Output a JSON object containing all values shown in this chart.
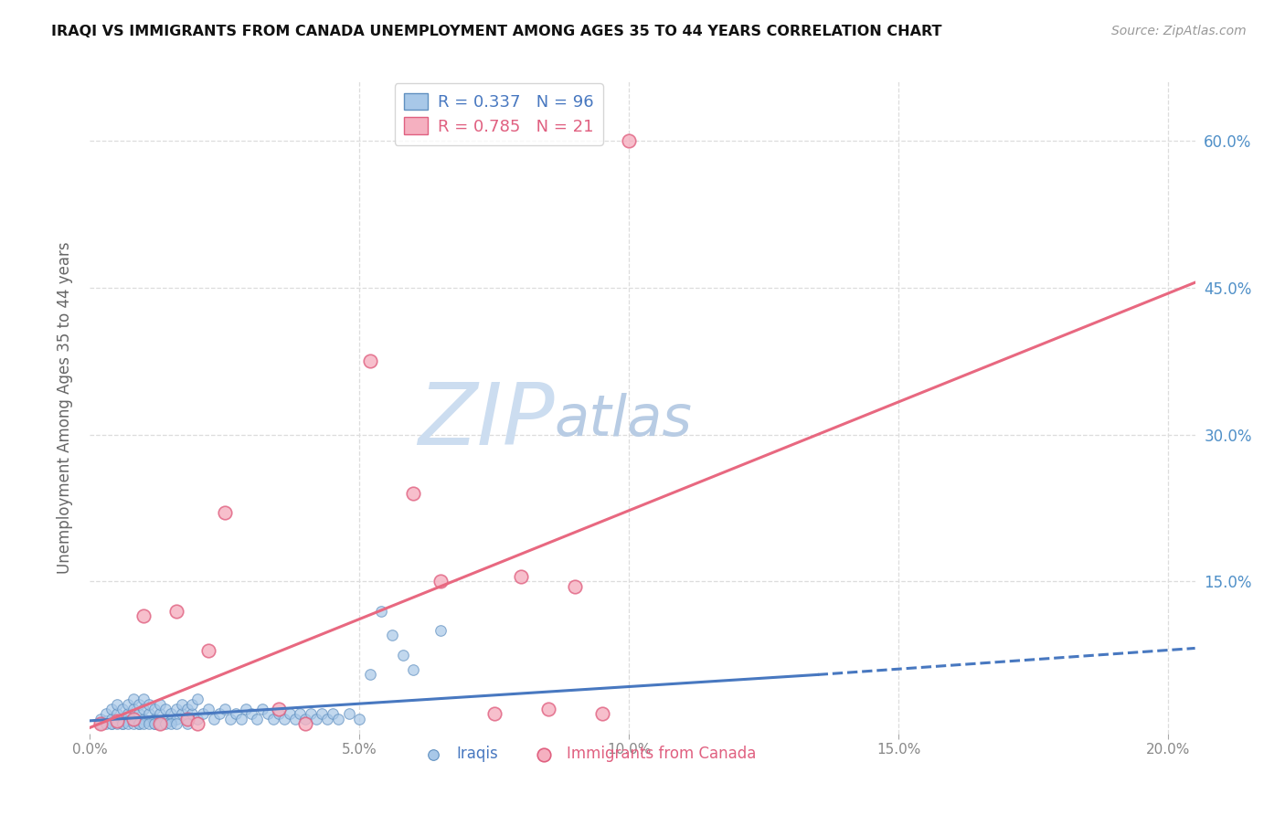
{
  "title": "IRAQI VS IMMIGRANTS FROM CANADA UNEMPLOYMENT AMONG AGES 35 TO 44 YEARS CORRELATION CHART",
  "source": "Source: ZipAtlas.com",
  "ylabel": "Unemployment Among Ages 35 to 44 years",
  "xlim": [
    0.0,
    0.205
  ],
  "ylim": [
    -0.005,
    0.66
  ],
  "iraqis_color": "#a8c8e8",
  "iraqis_edge_color": "#6090c0",
  "canada_color": "#f5b0c0",
  "canada_edge_color": "#e06080",
  "iraqis_line_color": "#4878c0",
  "canada_line_color": "#e86880",
  "iraqis_R": "0.337",
  "iraqis_N": "96",
  "canada_R": "0.785",
  "canada_N": "21",
  "ytick_color": "#5090c8",
  "xtick_color": "#888888",
  "ylabel_color": "#666666",
  "grid_color": "#dddddd",
  "iraqis_x": [
    0.002,
    0.003,
    0.003,
    0.004,
    0.004,
    0.004,
    0.005,
    0.005,
    0.005,
    0.006,
    0.006,
    0.006,
    0.007,
    0.007,
    0.007,
    0.008,
    0.008,
    0.008,
    0.009,
    0.009,
    0.009,
    0.01,
    0.01,
    0.01,
    0.011,
    0.011,
    0.011,
    0.012,
    0.012,
    0.012,
    0.013,
    0.013,
    0.014,
    0.014,
    0.015,
    0.015,
    0.016,
    0.016,
    0.017,
    0.017,
    0.018,
    0.018,
    0.019,
    0.019,
    0.02,
    0.02,
    0.021,
    0.022,
    0.023,
    0.024,
    0.025,
    0.026,
    0.027,
    0.028,
    0.029,
    0.03,
    0.031,
    0.032,
    0.033,
    0.034,
    0.035,
    0.036,
    0.037,
    0.038,
    0.039,
    0.04,
    0.041,
    0.042,
    0.043,
    0.044,
    0.045,
    0.046,
    0.048,
    0.05,
    0.052,
    0.054,
    0.056,
    0.058,
    0.06,
    0.065,
    0.002,
    0.003,
    0.004,
    0.005,
    0.006,
    0.007,
    0.008,
    0.009,
    0.01,
    0.011,
    0.012,
    0.013,
    0.014,
    0.015,
    0.016,
    0.018
  ],
  "iraqis_y": [
    0.01,
    0.008,
    0.015,
    0.01,
    0.02,
    0.005,
    0.015,
    0.008,
    0.025,
    0.01,
    0.02,
    0.005,
    0.015,
    0.025,
    0.008,
    0.01,
    0.02,
    0.03,
    0.015,
    0.005,
    0.025,
    0.01,
    0.02,
    0.03,
    0.008,
    0.015,
    0.025,
    0.01,
    0.02,
    0.005,
    0.015,
    0.025,
    0.01,
    0.02,
    0.008,
    0.015,
    0.01,
    0.02,
    0.015,
    0.025,
    0.01,
    0.02,
    0.015,
    0.025,
    0.01,
    0.03,
    0.015,
    0.02,
    0.01,
    0.015,
    0.02,
    0.01,
    0.015,
    0.01,
    0.02,
    0.015,
    0.01,
    0.02,
    0.015,
    0.01,
    0.015,
    0.01,
    0.015,
    0.01,
    0.015,
    0.01,
    0.015,
    0.01,
    0.015,
    0.01,
    0.015,
    0.01,
    0.015,
    0.01,
    0.055,
    0.12,
    0.095,
    0.075,
    0.06,
    0.1,
    0.005,
    0.005,
    0.005,
    0.005,
    0.005,
    0.005,
    0.005,
    0.005,
    0.005,
    0.005,
    0.005,
    0.005,
    0.005,
    0.005,
    0.005,
    0.005
  ],
  "canada_x": [
    0.002,
    0.005,
    0.008,
    0.01,
    0.013,
    0.016,
    0.018,
    0.02,
    0.022,
    0.025,
    0.035,
    0.04,
    0.052,
    0.06,
    0.065,
    0.075,
    0.08,
    0.085,
    0.09,
    0.095,
    0.1
  ],
  "canada_y": [
    0.005,
    0.008,
    0.01,
    0.115,
    0.005,
    0.12,
    0.01,
    0.005,
    0.08,
    0.22,
    0.02,
    0.005,
    0.375,
    0.24,
    0.15,
    0.015,
    0.155,
    0.02,
    0.145,
    0.015,
    0.6
  ],
  "iraqis_trend_x0": 0.0,
  "iraqis_trend_y0": 0.008,
  "iraqis_trend_x1": 0.135,
  "iraqis_trend_y1": 0.055,
  "iraqis_trend_dash_x0": 0.135,
  "iraqis_trend_dash_y0": 0.055,
  "iraqis_trend_dash_x1": 0.205,
  "iraqis_trend_dash_y1": 0.082,
  "canada_trend_x0": 0.0,
  "canada_trend_y0": 0.001,
  "canada_trend_x1": 0.205,
  "canada_trend_y1": 0.455
}
